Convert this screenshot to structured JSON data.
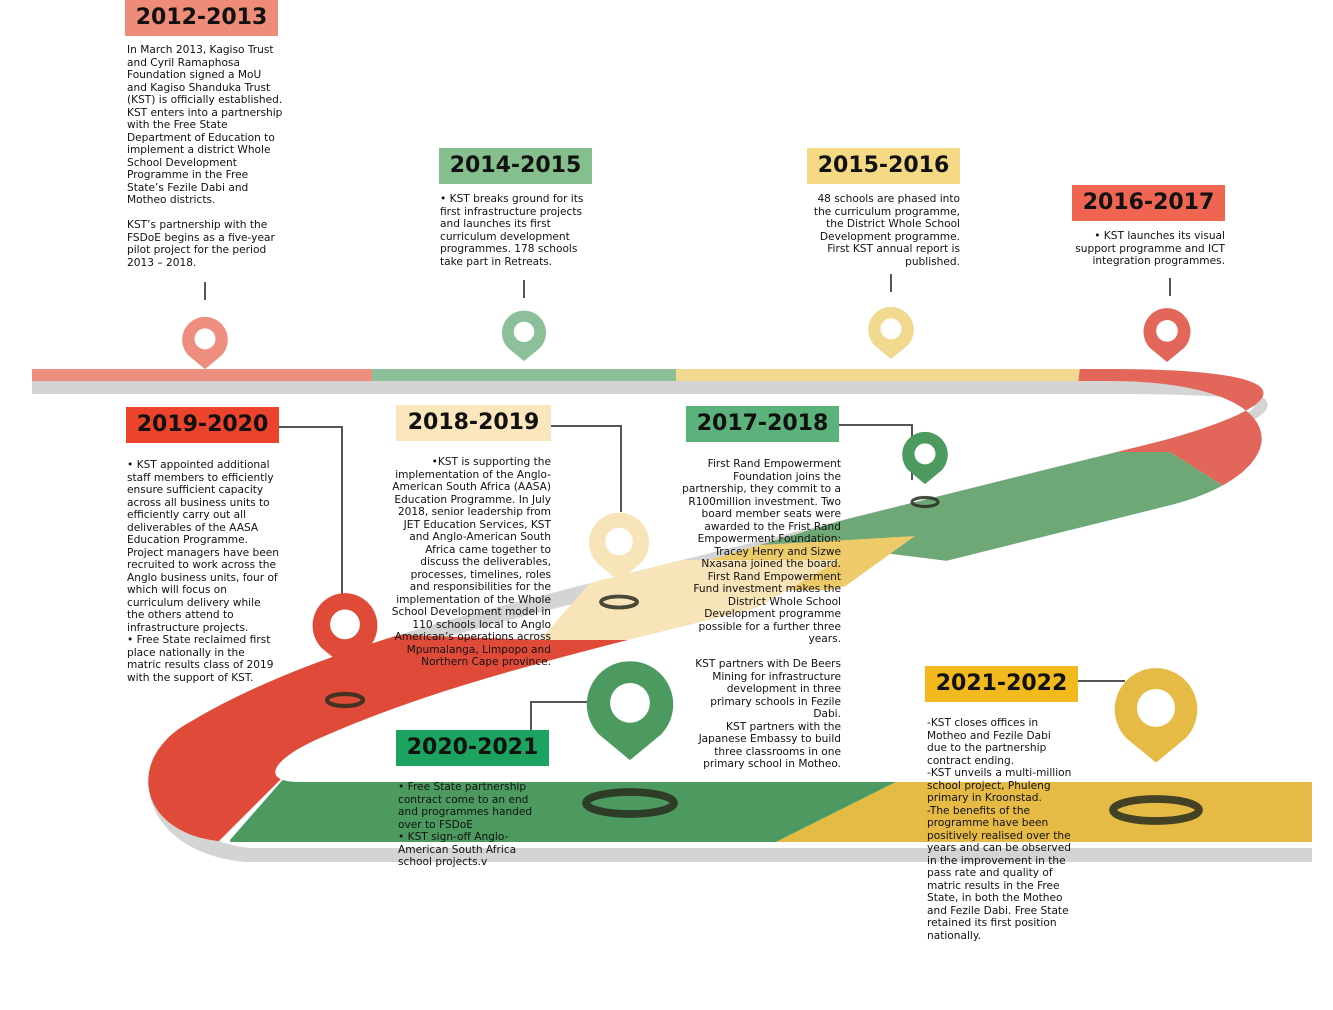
{
  "colors": {
    "salmon": "#EE8E7E",
    "sage": "#8DC09A",
    "sand": "#F2D990",
    "coral": "#E2675A",
    "red": "#DF4B38",
    "green": "#6FA877",
    "cream": "#F7E4B9",
    "darkgreen": "#4C9A5F",
    "gold": "#E5BA45",
    "yellow": "#EDCA6A",
    "yearSalmon": "#EF8C79",
    "yearSage": "#85BF8E",
    "yearSand": "#F5D985",
    "yearCoral": "#EF6552",
    "yearRed": "#EC432D",
    "yearCream": "#FBE6BD",
    "yearGreen": "#5BB27A",
    "yearDarkGreen": "#1BA35F",
    "yearGold": "#F2BA1C"
  },
  "milestones": {
    "m2012": {
      "year": "2012-2013",
      "text": "In March 2013, Kagiso Trust\nand Cyril Ramaphosa\nFoundation signed a MoU\nand Kagiso Shanduka Trust\n(KST) is officially established.\nKST enters into a partnership\nwith the Free State\nDepartment of Education to\nimplement a district Whole\nSchool Development\nProgramme in the Free\nState’s Fezile Dabi and\nMotheo districts.\n\nKST’s partnership with the\nFSDoE begins as a five-year\npilot project for the period\n2013 – 2018."
    },
    "m2014": {
      "year": "2014-2015",
      "text": "• KST breaks ground for its\nfirst infrastructure projects\nand launches its first\ncurriculum development\nprogrammes.  178 schools\ntake part in Retreats."
    },
    "m2015": {
      "year": "2015-2016",
      "text": "48 schools are phased into\nthe curriculum programme,\nthe District Whole School\nDevelopment programme.\nFirst KST annual report is\npublished."
    },
    "m2016": {
      "year": "2016-2017",
      "text": "• KST launches its visual\nsupport programme and ICT\nintegration programmes."
    },
    "m2017": {
      "year": "2017-2018",
      "text": "First Rand Empowerment\nFoundation joins the\npartnership, they commit to a\nR100million investment. Two\nboard member seats were\nawarded to the Frist Rand\nEmpowerment Foundation:\nTracey Henry and Sizwe\nNxasana joined the board.\nFirst Rand Empowerment\nFund investment makes the\nDistrict Whole School\nDevelopment programme\npossible for a further three\nyears.\n\nKST partners with De Beers\nMining for infrastructure\ndevelopment in three\nprimary schools in Fezile\nDabi.\nKST partners with the\nJapanese Embassy to build\nthree classrooms in one\nprimary school in Motheo."
    },
    "m2018": {
      "year": "2018-2019",
      "text": "•KST is supporting the\nimplementation of the Anglo-\nAmerican South Africa (AASA)\nEducation Programme. In July\n2018, senior leadership from\nJET Education Services, KST\nand Anglo-American South\nAfrica came together to\ndiscuss the deliverables,\nprocesses, timelines, roles\nand responsibilities for the\nimplementation of the Whole\nSchool Development model in\n110 schools local to Anglo\nAmerican’s operations across\nMpumalanga, Limpopo and\nNorthern Cape province."
    },
    "m2019": {
      "year": "2019-2020",
      "text": "• KST appointed additional\nstaff members to efficiently\nensure sufficient capacity\nacross all business units to\nefficiently carry out all\ndeliverables of the AASA\nEducation Programme.\nProject managers have been\nrecruited to work across the\nAnglo business units, four of\nwhich will focus on\ncurriculum delivery while\nthe others attend to\ninfrastructure projects.\n• Free State reclaimed first\nplace nationally in the\nmatric results class of 2019\nwith the support of KST."
    },
    "m2020": {
      "year": "2020-2021",
      "text": "• Free State partnership\ncontract come to an end\nand programmes handed\nover to FSDoE\n• KST sign-off Anglo-\nAmerican South Africa\nschool projects.v"
    },
    "m2021": {
      "year": "2021-2022",
      "text": "-KST closes offices in\nMotheo and Fezile Dabi\ndue to the partnership\ncontract ending.\n-KST unveils a multi-million\nschool project, Phuleng\nprimary in Kroonstad.\n-The benefits of the\nprogramme have been\npositively realised over the\nyears and can be observed\nin the improvement in the\npass rate and quality of\nmatric results in the Free\nState, in both the Motheo\nand Fezile Dabi. Free State\nretained its first position\nnationally."
    }
  }
}
